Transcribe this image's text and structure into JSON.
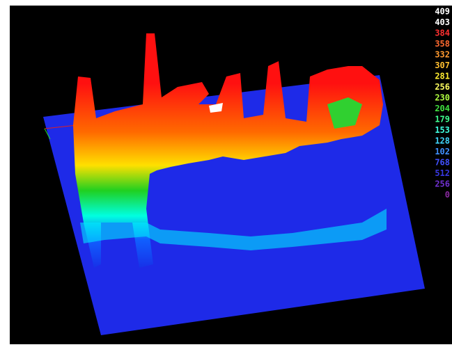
{
  "legend": [
    {
      "label": "409",
      "color": "#ffffff"
    },
    {
      "label": "403",
      "color": "#ffffff"
    },
    {
      "label": "384",
      "color": "#ff3030"
    },
    {
      "label": "358",
      "color": "#ff6a30"
    },
    {
      "label": "332",
      "color": "#ff9a30"
    },
    {
      "label": "307",
      "color": "#ffbf30"
    },
    {
      "label": "281",
      "color": "#ffec30"
    },
    {
      "label": "256",
      "color": "#ffff60"
    },
    {
      "label": "230",
      "color": "#b0ff40"
    },
    {
      "label": "204",
      "color": "#40e040"
    },
    {
      "label": "179",
      "color": "#40ff90"
    },
    {
      "label": "153",
      "color": "#40ffe0"
    },
    {
      "label": "128",
      "color": "#40d8ff"
    },
    {
      "label": "102",
      "color": "#4090ff"
    },
    {
      "label": "768",
      "color": "#4050ff"
    },
    {
      "label": "512",
      "color": "#3838e0"
    },
    {
      "label": "256",
      "color": "#7030d0"
    },
    {
      "label": "0",
      "color": "#8a2aa0"
    }
  ]
}
